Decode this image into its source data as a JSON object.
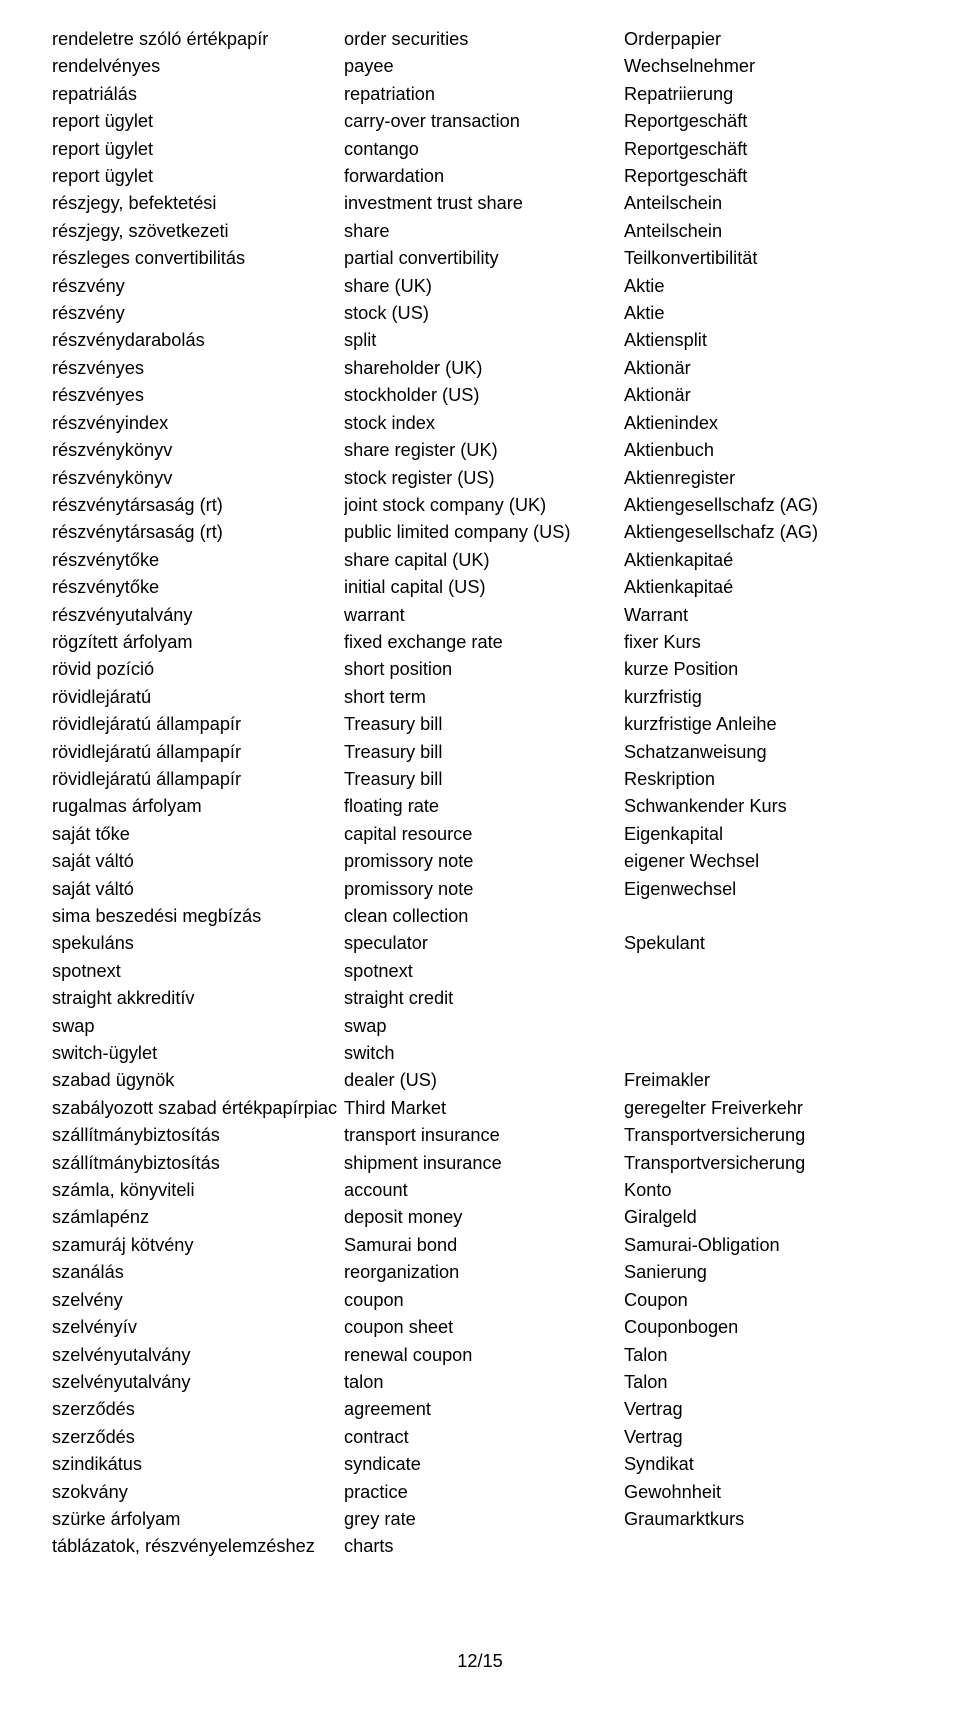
{
  "page": {
    "footer": "12/15"
  },
  "col1": [
    "rendeletre szóló értékpapír",
    "rendelvényes",
    "repatriálás",
    "report ügylet",
    "report ügylet",
    "report ügylet",
    "részjegy, befektetési",
    "részjegy, szövetkezeti",
    "részleges convertibilitás",
    "részvény",
    "részvény",
    "részvénydarabolás",
    "részvényes",
    "részvényes",
    "részvényindex",
    "részvénykönyv",
    "részvénykönyv",
    "részvénytársaság (rt)",
    "részvénytársaság (rt)",
    "részvénytőke",
    "részvénytőke",
    "részvényutalvány",
    "rögzített árfolyam",
    "rövid pozíció",
    "rövidlejáratú",
    "rövidlejáratú állampapír",
    "rövidlejáratú állampapír",
    "rövidlejáratú állampapír",
    "rugalmas árfolyam",
    "saját tőke",
    "saját váltó",
    "saját váltó",
    "sima beszedési megbízás",
    "spekuláns",
    "spotnext",
    "straight akkreditív",
    "swap",
    "switch-ügylet",
    "szabad ügynök",
    "szabályozott szabad értékpapírpiac",
    "szállítmánybiztosítás",
    "szállítmánybiztosítás",
    "számla, könyviteli",
    "számlapénz",
    "szamuráj kötvény",
    "szanálás",
    "szelvény",
    "szelvényív",
    "szelvényutalvány",
    "szelvényutalvány",
    "szerződés",
    "szerződés",
    "szindikátus",
    "szokvány",
    "szürke árfolyam",
    "táblázatok, részvényelemzéshez"
  ],
  "col2": [
    "order securities",
    "payee",
    "repatriation",
    "carry-over transaction",
    "contango",
    "forwardation",
    "investment trust share",
    "share",
    "partial convertibility",
    "share (UK)",
    "stock (US)",
    "split",
    "shareholder (UK)",
    "stockholder (US)",
    "stock index",
    "share register (UK)",
    "stock register (US)",
    "joint stock company (UK)",
    "public limited company (US)",
    "share capital (UK)",
    "initial capital (US)",
    "warrant",
    "fixed exchange rate",
    "short position",
    "short term",
    "Treasury bill",
    "Treasury bill",
    "Treasury bill",
    "floating rate",
    "capital resource",
    "promissory note",
    "promissory note",
    "clean collection",
    "speculator",
    "spotnext",
    "straight credit",
    "swap",
    "switch",
    "dealer (US)",
    "Third Market",
    "transport insurance",
    "shipment insurance",
    "account",
    "deposit money",
    "Samurai bond",
    "reorganization",
    "coupon",
    "coupon sheet",
    "renewal coupon",
    "talon",
    "agreement",
    "contract",
    "syndicate",
    "practice",
    "grey rate",
    "charts"
  ],
  "col3": [
    "Orderpapier",
    "Wechselnehmer",
    "Repatriierung",
    "Reportgeschäft",
    "Reportgeschäft",
    "Reportgeschäft",
    "Anteilschein",
    "Anteilschein",
    "Teilkonvertibilität",
    "Aktie",
    "Aktie",
    "Aktiensplit",
    "Aktionär",
    "Aktionär",
    "Aktienindex",
    "Aktienbuch",
    "Aktienregister",
    "Aktiengesellschafz (AG)",
    "Aktiengesellschafz (AG)",
    "Aktienkapitaé",
    "Aktienkapitaé",
    "Warrant",
    "fixer Kurs",
    "kurze Position",
    "kurzfristig",
    "kurzfristige Anleihe",
    "Schatzanweisung",
    "Reskription",
    "Schwankender Kurs",
    "Eigenkapital",
    "eigener Wechsel",
    "Eigenwechsel",
    "",
    "Spekulant",
    "",
    "",
    "",
    "",
    "Freimakler",
    "geregelter Freiverkehr",
    "Transportversicherung",
    "Transportversicherung",
    "Konto",
    "Giralgeld",
    "Samurai-Obligation",
    "Sanierung",
    "Coupon",
    "Couponbogen",
    "Talon",
    "Talon",
    "Vertrag",
    "Vertrag",
    "Syndikat",
    "Gewohnheit",
    "Graumarktkurs",
    ""
  ]
}
